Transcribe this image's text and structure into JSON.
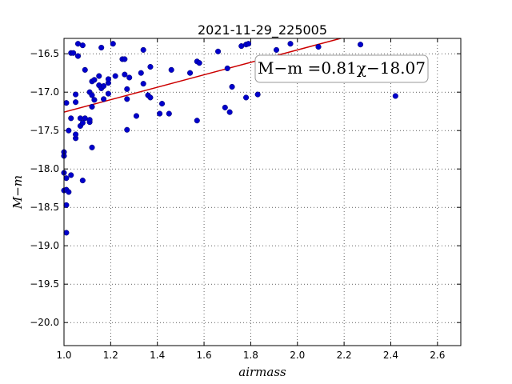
{
  "chart_data": {
    "type": "scatter",
    "title": "2021-11-29_225005",
    "xlabel": "airmass",
    "ylabel": "M−m",
    "xlim": [
      1.0,
      2.7
    ],
    "ylim": [
      -20.3,
      -16.3
    ],
    "y_inverted": true,
    "grid": true,
    "grid_style": "dotted",
    "xticks": [
      1.0,
      1.2,
      1.4,
      1.6,
      1.8,
      2.0,
      2.2,
      2.4,
      2.6
    ],
    "xtick_labels": [
      "1.0",
      "1.2",
      "1.4",
      "1.6",
      "1.8",
      "2.0",
      "2.2",
      "2.4",
      "2.6"
    ],
    "yticks": [
      -16.5,
      -17.0,
      -17.5,
      -18.0,
      -18.5,
      -19.0,
      -19.5,
      -20.0
    ],
    "ytick_labels": [
      "−16.5",
      "−17.0",
      "−17.5",
      "−18.0",
      "−18.5",
      "−19.0",
      "−19.5",
      "−20.0"
    ],
    "point_color": "#0000cc",
    "fit_color": "#cc0000",
    "fit": {
      "slope": 0.81,
      "intercept": -18.07,
      "x_range": [
        1.0,
        2.7
      ]
    },
    "annotation": "M−m =0.81χ−18.07",
    "points": [
      [
        1.0,
        -17.78
      ],
      [
        1.0,
        -17.83
      ],
      [
        1.0,
        -18.05
      ],
      [
        1.0,
        -18.28
      ],
      [
        1.01,
        -18.12
      ],
      [
        1.01,
        -18.27
      ],
      [
        1.01,
        -18.47
      ],
      [
        1.01,
        -18.83
      ],
      [
        1.01,
        -17.14
      ],
      [
        1.02,
        -17.5
      ],
      [
        1.02,
        -18.3
      ],
      [
        1.03,
        -18.08
      ],
      [
        1.03,
        -17.34
      ],
      [
        1.03,
        -16.49
      ],
      [
        1.04,
        -16.49
      ],
      [
        1.05,
        -17.03
      ],
      [
        1.05,
        -17.6
      ],
      [
        1.05,
        -17.55
      ],
      [
        1.05,
        -17.13
      ],
      [
        1.06,
        -16.53
      ],
      [
        1.06,
        -16.37
      ],
      [
        1.07,
        -17.44
      ],
      [
        1.07,
        -17.34
      ],
      [
        1.08,
        -18.15
      ],
      [
        1.08,
        -17.4
      ],
      [
        1.08,
        -16.39
      ],
      [
        1.09,
        -16.71
      ],
      [
        1.09,
        -17.34
      ],
      [
        1.11,
        -17.0
      ],
      [
        1.11,
        -17.39
      ],
      [
        1.11,
        -17.36
      ],
      [
        1.12,
        -16.86
      ],
      [
        1.12,
        -17.04
      ],
      [
        1.12,
        -17.19
      ],
      [
        1.12,
        -17.72
      ],
      [
        1.13,
        -17.1
      ],
      [
        1.13,
        -16.84
      ],
      [
        1.15,
        -16.79
      ],
      [
        1.15,
        -16.91
      ],
      [
        1.16,
        -16.95
      ],
      [
        1.16,
        -16.42
      ],
      [
        1.17,
        -17.09
      ],
      [
        1.17,
        -16.92
      ],
      [
        1.19,
        -16.88
      ],
      [
        1.19,
        -16.83
      ],
      [
        1.19,
        -17.02
      ],
      [
        1.21,
        -16.37
      ],
      [
        1.22,
        -16.79
      ],
      [
        1.25,
        -16.57
      ],
      [
        1.26,
        -16.57
      ],
      [
        1.26,
        -16.77
      ],
      [
        1.27,
        -16.96
      ],
      [
        1.27,
        -17.09
      ],
      [
        1.27,
        -17.49
      ],
      [
        1.28,
        -16.81
      ],
      [
        1.31,
        -17.31
      ],
      [
        1.33,
        -16.75
      ],
      [
        1.34,
        -16.89
      ],
      [
        1.34,
        -16.45
      ],
      [
        1.36,
        -17.04
      ],
      [
        1.37,
        -16.67
      ],
      [
        1.37,
        -17.07
      ],
      [
        1.41,
        -17.28
      ],
      [
        1.42,
        -17.15
      ],
      [
        1.45,
        -17.28
      ],
      [
        1.46,
        -16.71
      ],
      [
        1.54,
        -16.75
      ],
      [
        1.57,
        -16.6
      ],
      [
        1.57,
        -17.37
      ],
      [
        1.58,
        -16.62
      ],
      [
        1.66,
        -16.47
      ],
      [
        1.69,
        -17.2
      ],
      [
        1.7,
        -16.69
      ],
      [
        1.71,
        -17.26
      ],
      [
        1.72,
        -16.93
      ],
      [
        1.76,
        -16.4
      ],
      [
        1.78,
        -16.38
      ],
      [
        1.78,
        -17.07
      ],
      [
        1.79,
        -16.37
      ],
      [
        1.83,
        -17.03
      ],
      [
        1.91,
        -16.45
      ],
      [
        1.97,
        -16.37
      ],
      [
        2.09,
        -16.41
      ],
      [
        2.27,
        -16.38
      ],
      [
        2.42,
        -17.05
      ]
    ]
  }
}
